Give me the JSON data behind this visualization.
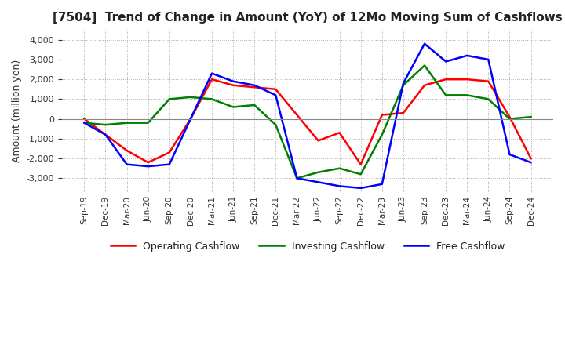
{
  "title": "[7504]  Trend of Change in Amount (YoY) of 12Mo Moving Sum of Cashflows",
  "ylabel": "Amount (million yen)",
  "x_labels": [
    "Sep-19",
    "Dec-19",
    "Mar-20",
    "Jun-20",
    "Sep-20",
    "Dec-20",
    "Mar-21",
    "Jun-21",
    "Sep-21",
    "Dec-21",
    "Mar-22",
    "Jun-22",
    "Sep-22",
    "Dec-22",
    "Mar-23",
    "Jun-23",
    "Sep-23",
    "Dec-23",
    "Mar-24",
    "Jun-24",
    "Sep-24",
    "Dec-24"
  ],
  "operating": [
    0,
    -800,
    -1600,
    -2200,
    -1700,
    0,
    2000,
    1700,
    1600,
    1500,
    200,
    -1100,
    -700,
    -2300,
    200,
    300,
    1700,
    2000,
    2000,
    1900,
    100,
    -2000
  ],
  "investing": [
    -200,
    -300,
    -200,
    -200,
    1000,
    1100,
    1000,
    600,
    700,
    -300,
    -3000,
    -2700,
    -2500,
    -2800,
    -800,
    1700,
    2700,
    1200,
    1200,
    1000,
    0,
    100
  ],
  "free": [
    -200,
    -800,
    -2300,
    -2400,
    -2300,
    0,
    2300,
    1900,
    1700,
    1200,
    -3000,
    -3200,
    -3400,
    -3500,
    -3300,
    1800,
    3800,
    2900,
    3200,
    3000,
    -1800,
    -2200
  ],
  "ylim": [
    -3700,
    4500
  ],
  "yticks": [
    -3000,
    -2000,
    -1000,
    0,
    1000,
    2000,
    3000,
    4000
  ],
  "operating_color": "#ff0000",
  "investing_color": "#008000",
  "free_color": "#0000ff",
  "background_color": "#ffffff",
  "grid_color": "#aaaaaa"
}
